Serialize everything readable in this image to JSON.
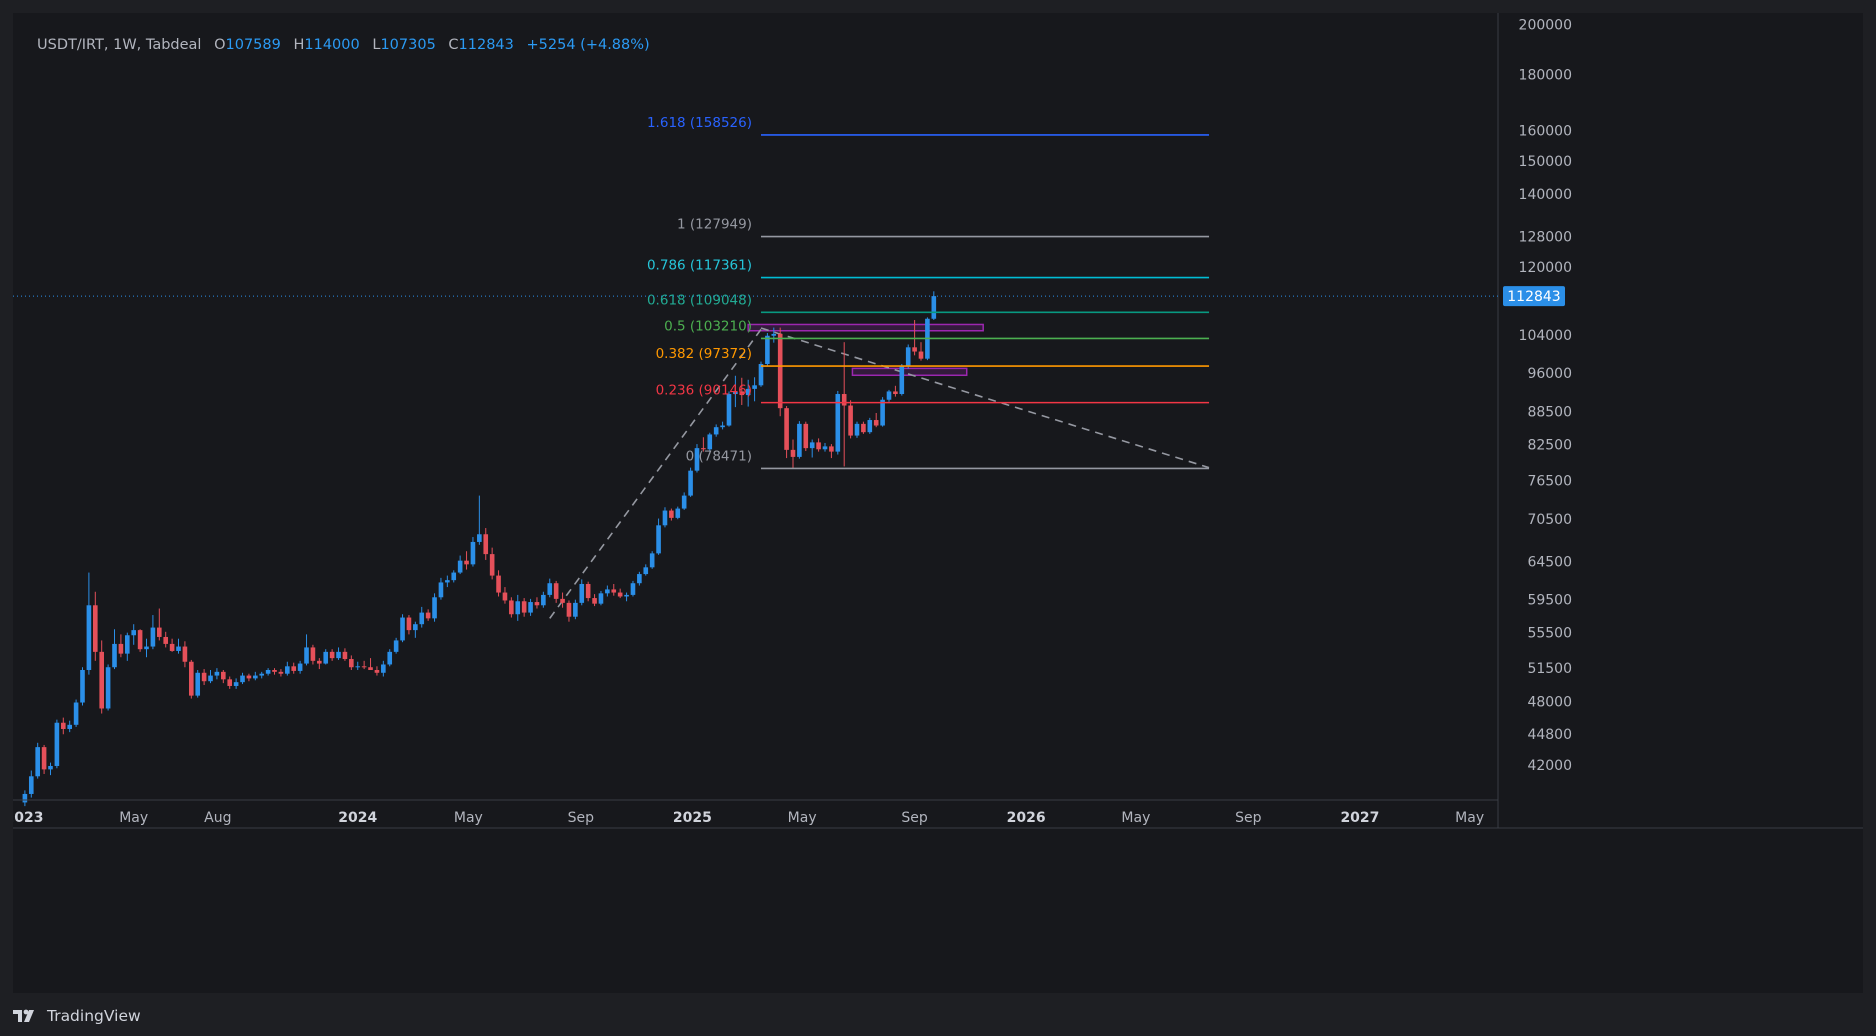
{
  "header": {
    "symbol": "USDT/IRT, 1W, Tabdeal",
    "open_label": "O",
    "open": "107589",
    "high_label": "H",
    "high": "114000",
    "low_label": "L",
    "low": "107305",
    "close_label": "C",
    "close": "112843",
    "change": "+5254 (+4.88%)"
  },
  "branding": {
    "name": "TradingView"
  },
  "colors": {
    "background": "#17181c",
    "bull": "#2b8fe8",
    "bear": "#e5505a",
    "grid_text": "#b2b5be",
    "axis_line": "#3a3d45",
    "price_label_bg": "#2b8fe8"
  },
  "chart_data": {
    "type": "candlestick",
    "symbol": "USDT/IRT",
    "interval": "1W",
    "exchange": "Tabdeal",
    "y_scale": "log",
    "ylim": [
      39000,
      205000
    ],
    "y_ticks": [
      200000,
      180000,
      160000,
      150000,
      140000,
      128000,
      120000,
      104000,
      96000,
      88500,
      82500,
      76500,
      70500,
      64500,
      59500,
      55500,
      51500,
      48000,
      44800,
      42000
    ],
    "x_range": [
      "2022-12-20",
      "2027-06-01"
    ],
    "x_ticks": [
      {
        "date": "2023-01-01",
        "label": "2023",
        "major": true
      },
      {
        "date": "2023-05-01",
        "label": "May",
        "major": false
      },
      {
        "date": "2023-08-01",
        "label": "Aug",
        "major": false
      },
      {
        "date": "2024-01-01",
        "label": "2024",
        "major": true
      },
      {
        "date": "2024-05-01",
        "label": "May",
        "major": false
      },
      {
        "date": "2024-09-01",
        "label": "Sep",
        "major": false
      },
      {
        "date": "2025-01-01",
        "label": "2025",
        "major": true
      },
      {
        "date": "2025-05-01",
        "label": "May",
        "major": false
      },
      {
        "date": "2025-09-01",
        "label": "Sep",
        "major": false
      },
      {
        "date": "2026-01-01",
        "label": "2026",
        "major": true
      },
      {
        "date": "2026-05-01",
        "label": "May",
        "major": false
      },
      {
        "date": "2026-09-01",
        "label": "Sep",
        "major": false
      },
      {
        "date": "2027-01-01",
        "label": "2027",
        "major": true
      },
      {
        "date": "2027-05-01",
        "label": "May",
        "major": false
      }
    ],
    "last_price": 112843,
    "first_week": "2023-01-02",
    "candles": [
      [
        38800,
        39800,
        38500,
        39500
      ],
      [
        39500,
        41500,
        39200,
        41000
      ],
      [
        41000,
        44000,
        40800,
        43600
      ],
      [
        43600,
        43800,
        41200,
        41600
      ],
      [
        41600,
        42200,
        41100,
        41900
      ],
      [
        41900,
        46200,
        41700,
        45900
      ],
      [
        45900,
        46400,
        44800,
        45300
      ],
      [
        45300,
        46100,
        45000,
        45700
      ],
      [
        45700,
        48200,
        45500,
        47900
      ],
      [
        47900,
        51600,
        47600,
        51300
      ],
      [
        51300,
        63000,
        50800,
        58800
      ],
      [
        58800,
        60500,
        52300,
        53300
      ],
      [
        53300,
        54600,
        46800,
        47300
      ],
      [
        47300,
        51900,
        47100,
        51600
      ],
      [
        51600,
        55900,
        51400,
        54200
      ],
      [
        54200,
        55300,
        52700,
        53100
      ],
      [
        53100,
        55500,
        52300,
        55200
      ],
      [
        55200,
        56500,
        54100,
        55800
      ],
      [
        55800,
        55900,
        53300,
        53600
      ],
      [
        53600,
        54800,
        52700,
        53900
      ],
      [
        53900,
        57600,
        53600,
        56100
      ],
      [
        56100,
        58400,
        54600,
        55000
      ],
      [
        55000,
        55600,
        53800,
        54200
      ],
      [
        54200,
        54800,
        53300,
        53400
      ],
      [
        53400,
        54800,
        53100,
        53900
      ],
      [
        53900,
        54500,
        51600,
        52200
      ],
      [
        52200,
        52400,
        48300,
        48600
      ],
      [
        48600,
        51300,
        48400,
        51000
      ],
      [
        51000,
        51400,
        49700,
        50100
      ],
      [
        50100,
        51300,
        49900,
        50700
      ],
      [
        50700,
        51500,
        50300,
        51100
      ],
      [
        51100,
        51300,
        49900,
        50300
      ],
      [
        50300,
        50600,
        49300,
        49600
      ],
      [
        49600,
        50400,
        49300,
        50000
      ],
      [
        50000,
        51000,
        49800,
        50700
      ],
      [
        50700,
        50900,
        50100,
        50400
      ],
      [
        50400,
        51100,
        50200,
        50700
      ],
      [
        50700,
        51100,
        50400,
        50900
      ],
      [
        50900,
        51500,
        50700,
        51300
      ],
      [
        51300,
        51500,
        50800,
        51100
      ],
      [
        51100,
        51400,
        50600,
        50900
      ],
      [
        50900,
        52200,
        50700,
        51700
      ],
      [
        51700,
        52100,
        50900,
        51200
      ],
      [
        51200,
        52300,
        50900,
        52000
      ],
      [
        52000,
        55300,
        51800,
        53800
      ],
      [
        53800,
        54100,
        51900,
        52300
      ],
      [
        52300,
        52600,
        51400,
        52000
      ],
      [
        52000,
        53600,
        51900,
        53300
      ],
      [
        53300,
        53600,
        52300,
        52600
      ],
      [
        52600,
        53800,
        52400,
        53300
      ],
      [
        53300,
        53700,
        52300,
        52500
      ],
      [
        52500,
        52900,
        51300,
        51600
      ],
      [
        51600,
        52200,
        51300,
        51700
      ],
      [
        51700,
        52300,
        51400,
        51600
      ],
      [
        51600,
        52600,
        51400,
        51300
      ],
      [
        51300,
        51700,
        50700,
        51000
      ],
      [
        51000,
        52300,
        50600,
        51900
      ],
      [
        51900,
        53600,
        51700,
        53300
      ],
      [
        53300,
        54900,
        53100,
        54600
      ],
      [
        54600,
        57700,
        54400,
        57300
      ],
      [
        57300,
        57600,
        55300,
        55800
      ],
      [
        55800,
        56800,
        54900,
        56500
      ],
      [
        56500,
        58600,
        56100,
        57900
      ],
      [
        57900,
        58300,
        56900,
        57200
      ],
      [
        57200,
        60300,
        56800,
        59800
      ],
      [
        59800,
        62300,
        59500,
        61700
      ],
      [
        61700,
        62600,
        61100,
        62000
      ],
      [
        62000,
        63300,
        61700,
        63000
      ],
      [
        63000,
        65300,
        62800,
        64600
      ],
      [
        64600,
        65900,
        63400,
        64100
      ],
      [
        64100,
        67900,
        63800,
        67200
      ],
      [
        67200,
        74100,
        66800,
        68300
      ],
      [
        68300,
        69200,
        64700,
        65500
      ],
      [
        65500,
        66400,
        62100,
        62600
      ],
      [
        62600,
        63300,
        59900,
        60400
      ],
      [
        60400,
        61100,
        59000,
        59400
      ],
      [
        59400,
        59800,
        57300,
        57700
      ],
      [
        57700,
        60100,
        56900,
        59300
      ],
      [
        59300,
        59700,
        57400,
        57900
      ],
      [
        57900,
        59600,
        57500,
        59200
      ],
      [
        59200,
        59800,
        58400,
        58800
      ],
      [
        58800,
        60500,
        58500,
        60100
      ],
      [
        60100,
        62200,
        59800,
        61600
      ],
      [
        61600,
        61900,
        59100,
        59600
      ],
      [
        59600,
        60400,
        58500,
        59100
      ],
      [
        59100,
        59400,
        56800,
        57400
      ],
      [
        57400,
        59500,
        57100,
        59100
      ],
      [
        59100,
        62100,
        58800,
        61500
      ],
      [
        61500,
        61800,
        59300,
        59700
      ],
      [
        59700,
        60200,
        58700,
        59000
      ],
      [
        59000,
        60600,
        58800,
        60300
      ],
      [
        60300,
        61300,
        59900,
        60800
      ],
      [
        60800,
        61500,
        60000,
        60400
      ],
      [
        60400,
        60900,
        59700,
        59900
      ],
      [
        59900,
        60400,
        59300,
        60100
      ],
      [
        60100,
        61900,
        59900,
        61600
      ],
      [
        61600,
        63100,
        61300,
        62800
      ],
      [
        62800,
        64100,
        62600,
        63700
      ],
      [
        63700,
        65900,
        63500,
        65600
      ],
      [
        65600,
        70600,
        65400,
        69600
      ],
      [
        69600,
        72300,
        69300,
        71800
      ],
      [
        71800,
        72100,
        70300,
        70700
      ],
      [
        70700,
        72400,
        70500,
        72100
      ],
      [
        72100,
        74600,
        71900,
        74100
      ],
      [
        74100,
        78600,
        73900,
        78100
      ],
      [
        78100,
        82600,
        77800,
        81900
      ],
      [
        81900,
        83800,
        81300,
        81700
      ],
      [
        81700,
        84600,
        81500,
        84300
      ],
      [
        84300,
        86100,
        83900,
        85600
      ],
      [
        85600,
        86600,
        85200,
        85900
      ],
      [
        85900,
        92300,
        85700,
        91800
      ],
      [
        91800,
        95400,
        89300,
        92300
      ],
      [
        92300,
        95000,
        89700,
        91600
      ],
      [
        91600,
        94600,
        89400,
        92800
      ],
      [
        92800,
        95100,
        90400,
        93500
      ],
      [
        93500,
        98300,
        93200,
        97800
      ],
      [
        97800,
        104400,
        97400,
        103800
      ],
      [
        103800,
        105600,
        102300,
        104200
      ],
      [
        104200,
        105600,
        87600,
        89100
      ],
      [
        89100,
        89500,
        80200,
        81600
      ],
      [
        81600,
        83400,
        78500,
        80400
      ],
      [
        80400,
        86700,
        80100,
        86200
      ],
      [
        86200,
        86600,
        81400,
        81900
      ],
      [
        81900,
        83400,
        80300,
        82900
      ],
      [
        82900,
        83600,
        81300,
        81700
      ],
      [
        81700,
        82800,
        81300,
        82200
      ],
      [
        82200,
        82600,
        80200,
        81300
      ],
      [
        81300,
        92400,
        80800,
        91800
      ],
      [
        91800,
        102400,
        78800,
        89600
      ],
      [
        89600,
        90600,
        83600,
        84100
      ],
      [
        84100,
        86600,
        83700,
        86200
      ],
      [
        86200,
        86600,
        84400,
        84700
      ],
      [
        84700,
        87300,
        84400,
        86900
      ],
      [
        86900,
        88200,
        85600,
        85900
      ],
      [
        85900,
        91200,
        85700,
        90700
      ],
      [
        90700,
        92600,
        90300,
        92300
      ],
      [
        92300,
        93400,
        91300,
        91800
      ],
      [
        91800,
        97800,
        91500,
        97300
      ],
      [
        97300,
        101900,
        96800,
        101300
      ],
      [
        101300,
        107300,
        99600,
        100400
      ],
      [
        100400,
        102400,
        98500,
        98900
      ],
      [
        98900,
        107900,
        98600,
        107589
      ],
      [
        107589,
        114000,
        107305,
        112843
      ]
    ],
    "fibonacci": [
      {
        "level": "1.618",
        "value": 158526,
        "color": "#2962ff",
        "label_color": "#2962ff"
      },
      {
        "level": "1",
        "value": 127949,
        "color": "#9598a1",
        "label_color": "#9598a1"
      },
      {
        "level": "0.786",
        "value": 117361,
        "color": "#00bcd4",
        "label_color": "#26c6da"
      },
      {
        "level": "0.618",
        "value": 109048,
        "color": "#089981",
        "label_color": "#22ab94"
      },
      {
        "level": "0.5",
        "value": 103210,
        "color": "#4caf50",
        "label_color": "#4caf50"
      },
      {
        "level": "0.382",
        "value": 97372,
        "color": "#ff9800",
        "label_color": "#ff9800"
      },
      {
        "level": "0.236",
        "value": 90146,
        "color": "#f23645",
        "label_color": "#f23645"
      },
      {
        "level": "0",
        "value": 78471,
        "color": "#9598a1",
        "label_color": "#9598a1"
      }
    ],
    "fib_start": "2025-03-17",
    "fib_end": "2026-07-20",
    "trendlines": [
      {
        "from": {
          "date": "2024-07-29",
          "price": 57200
        },
        "to": {
          "date": "2025-03-17",
          "price": 105200
        },
        "style": "dashed"
      },
      {
        "from": {
          "date": "2025-03-17",
          "price": 105500
        },
        "to": {
          "date": "2026-07-20",
          "price": 78600
        },
        "style": "dashed"
      }
    ],
    "zones": [
      {
        "from": "2025-03-03",
        "to": "2025-11-15",
        "low": 104900,
        "high": 106300,
        "color": "#9c27b0"
      },
      {
        "from": "2025-06-25",
        "to": "2025-10-28",
        "low": 95500,
        "high": 96900,
        "color": "#9c27b0"
      }
    ]
  }
}
